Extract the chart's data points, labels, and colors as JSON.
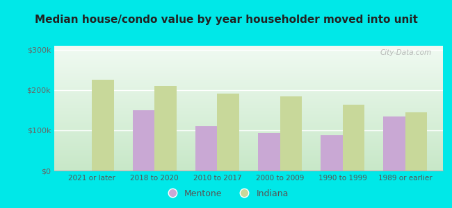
{
  "title": "Median house/condo value by year householder moved into unit",
  "categories": [
    "2021 or later",
    "2018 to 2020",
    "2010 to 2017",
    "2000 to 2009",
    "1990 to 1999",
    "1989 or earlier"
  ],
  "mentone_values": [
    null,
    150000,
    110000,
    93000,
    88000,
    135000
  ],
  "indiana_values": [
    225000,
    210000,
    192000,
    185000,
    163000,
    145000
  ],
  "mentone_color": "#c9a8d4",
  "indiana_color": "#c8d89a",
  "outer_bg": "#00e8e8",
  "plot_bg_bottom": "#c8e8c8",
  "plot_bg_top": "#f0faf2",
  "ylim": [
    0,
    310000
  ],
  "yticks": [
    0,
    100000,
    200000,
    300000
  ],
  "ytick_labels": [
    "$0",
    "$100k",
    "$200k",
    "$300k"
  ],
  "bar_width": 0.35,
  "legend_mentone": "Mentone",
  "legend_indiana": "Indiana",
  "watermark": "City-Data.com"
}
